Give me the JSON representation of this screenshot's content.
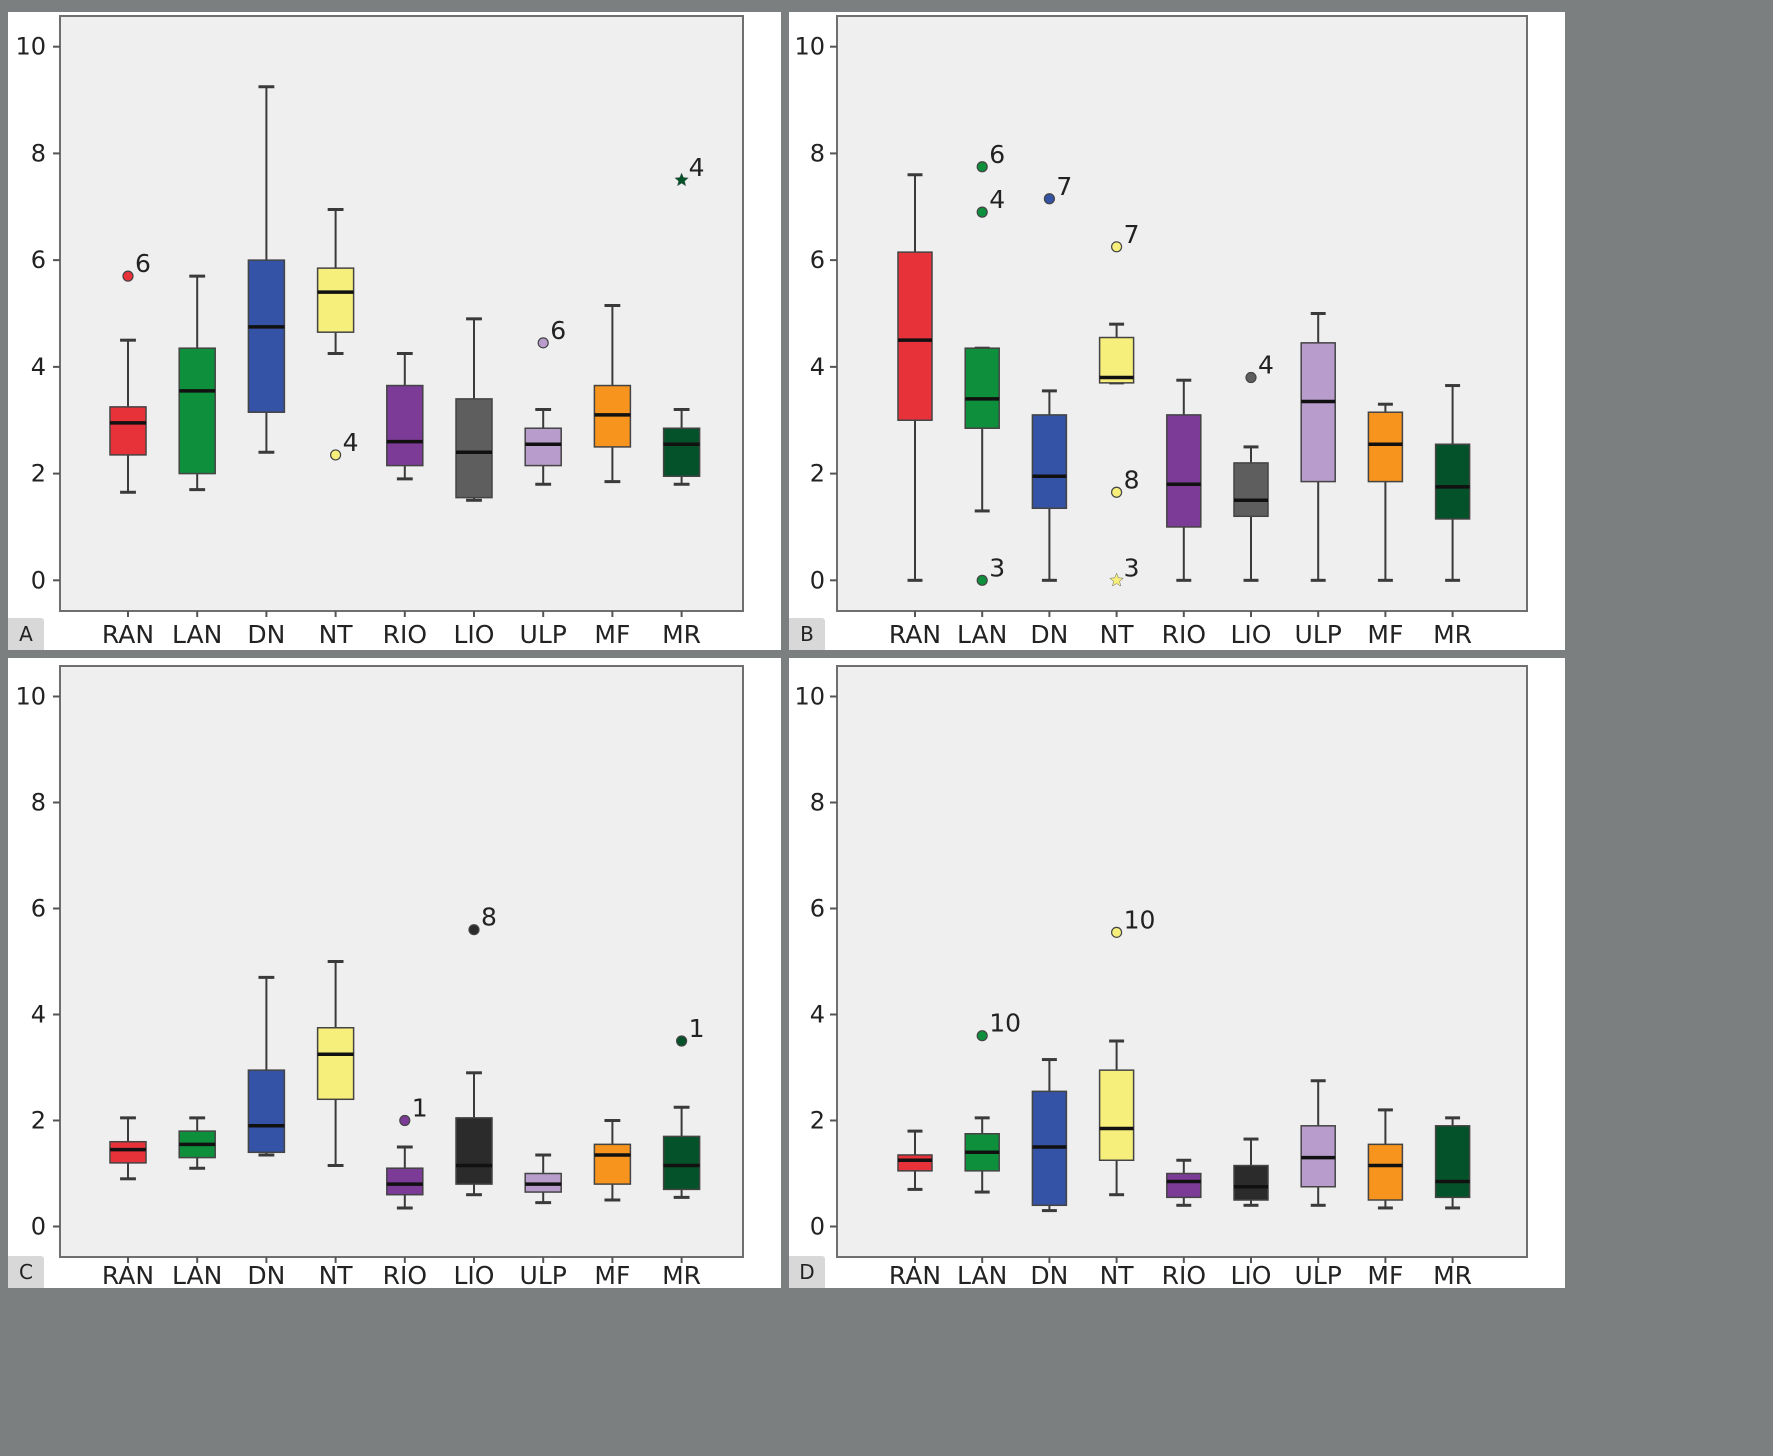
{
  "chart_data": [
    {
      "panel": "A",
      "type": "box",
      "categories": [
        "RAN",
        "LAN",
        "DN",
        "NT",
        "RIO",
        "LIO",
        "ULP",
        "MF",
        "MR"
      ],
      "colors": [
        "#e8323a",
        "#0e8f3c",
        "#3453a6",
        "#f7ef7c",
        "#7d3b98",
        "#5e5e5e",
        "#b79ccc",
        "#f7941d",
        "#045229"
      ],
      "ylim": [
        -0.5,
        10.5
      ],
      "yticks": [
        0,
        2,
        4,
        6,
        8,
        10
      ],
      "boxes": [
        {
          "min": 1.65,
          "q1": 2.35,
          "median": 2.95,
          "q3": 3.25,
          "max": 4.5
        },
        {
          "min": 1.7,
          "q1": 2.0,
          "median": 3.55,
          "q3": 4.35,
          "max": 5.7
        },
        {
          "min": 2.4,
          "q1": 3.15,
          "median": 4.75,
          "q3": 6.0,
          "max": 9.25
        },
        {
          "min": 4.25,
          "q1": 4.65,
          "median": 5.4,
          "q3": 5.85,
          "max": 6.95
        },
        {
          "min": 1.9,
          "q1": 2.15,
          "median": 2.6,
          "q3": 3.65,
          "max": 4.25
        },
        {
          "min": 1.5,
          "q1": 1.55,
          "median": 2.4,
          "q3": 3.4,
          "max": 4.9
        },
        {
          "min": 1.8,
          "q1": 2.15,
          "median": 2.55,
          "q3": 2.85,
          "max": 3.2
        },
        {
          "min": 1.85,
          "q1": 2.5,
          "median": 3.1,
          "q3": 3.65,
          "max": 5.15
        },
        {
          "min": 1.8,
          "q1": 1.95,
          "median": 2.55,
          "q3": 2.85,
          "max": 3.2
        }
      ],
      "outliers": [
        {
          "cat": 0,
          "value": 5.7,
          "label": "6",
          "marker": "circle"
        },
        {
          "cat": 3,
          "value": 2.35,
          "label": "4",
          "marker": "circle"
        },
        {
          "cat": 6,
          "value": 4.45,
          "label": "6",
          "marker": "circle"
        },
        {
          "cat": 8,
          "value": 7.5,
          "label": "4",
          "marker": "star"
        }
      ]
    },
    {
      "panel": "B",
      "type": "box",
      "categories": [
        "RAN",
        "LAN",
        "DN",
        "NT",
        "RIO",
        "LIO",
        "ULP",
        "MF",
        "MR"
      ],
      "colors": [
        "#e8323a",
        "#0e8f3c",
        "#3453a6",
        "#f7ef7c",
        "#7d3b98",
        "#5e5e5e",
        "#b79ccc",
        "#f7941d",
        "#045229"
      ],
      "ylim": [
        -0.5,
        10.5
      ],
      "yticks": [
        0,
        2,
        4,
        6,
        8,
        10
      ],
      "boxes": [
        {
          "min": 0.0,
          "q1": 3.0,
          "median": 4.5,
          "q3": 6.15,
          "max": 7.6
        },
        {
          "min": 1.3,
          "q1": 2.85,
          "median": 3.4,
          "q3": 4.35,
          "max": 4.35
        },
        {
          "min": 0.0,
          "q1": 1.35,
          "median": 1.95,
          "q3": 3.1,
          "max": 3.55
        },
        {
          "min": 3.7,
          "q1": 3.7,
          "median": 3.8,
          "q3": 4.55,
          "max": 4.8
        },
        {
          "min": 0.0,
          "q1": 1.0,
          "median": 1.8,
          "q3": 3.1,
          "max": 3.75
        },
        {
          "min": 0.0,
          "q1": 1.2,
          "median": 1.5,
          "q3": 2.2,
          "max": 2.5
        },
        {
          "min": 0.0,
          "q1": 1.85,
          "median": 3.35,
          "q3": 4.45,
          "max": 5.0
        },
        {
          "min": 0.0,
          "q1": 1.85,
          "median": 2.55,
          "q3": 3.15,
          "max": 3.3
        },
        {
          "min": 0.0,
          "q1": 1.15,
          "median": 1.75,
          "q3": 2.55,
          "max": 3.65
        }
      ],
      "outliers": [
        {
          "cat": 1,
          "value": 7.75,
          "label": "6",
          "marker": "circle"
        },
        {
          "cat": 1,
          "value": 6.9,
          "label": "4",
          "marker": "circle"
        },
        {
          "cat": 1,
          "value": 0.0,
          "label": "3",
          "marker": "circle"
        },
        {
          "cat": 2,
          "value": 7.15,
          "label": "7",
          "marker": "circle"
        },
        {
          "cat": 3,
          "value": 6.25,
          "label": "7",
          "marker": "circle"
        },
        {
          "cat": 3,
          "value": 1.65,
          "label": "8",
          "marker": "circle"
        },
        {
          "cat": 3,
          "value": 0.0,
          "label": "3",
          "marker": "star"
        },
        {
          "cat": 5,
          "value": 3.8,
          "label": "4",
          "marker": "circle"
        }
      ]
    },
    {
      "panel": "C",
      "type": "box",
      "categories": [
        "RAN",
        "LAN",
        "DN",
        "NT",
        "RIO",
        "LIO",
        "ULP",
        "MF",
        "MR"
      ],
      "colors": [
        "#e8323a",
        "#0e8f3c",
        "#3453a6",
        "#f7ef7c",
        "#7d3b98",
        "#2b2b2b",
        "#b79ccc",
        "#f7941d",
        "#045229"
      ],
      "ylim": [
        -0.5,
        10.5
      ],
      "yticks": [
        0,
        2,
        4,
        6,
        8,
        10
      ],
      "boxes": [
        {
          "min": 0.9,
          "q1": 1.2,
          "median": 1.45,
          "q3": 1.6,
          "max": 2.05
        },
        {
          "min": 1.1,
          "q1": 1.3,
          "median": 1.55,
          "q3": 1.8,
          "max": 2.05
        },
        {
          "min": 1.35,
          "q1": 1.4,
          "median": 1.9,
          "q3": 2.95,
          "max": 4.7
        },
        {
          "min": 1.15,
          "q1": 2.4,
          "median": 3.25,
          "q3": 3.75,
          "max": 5.0
        },
        {
          "min": 0.35,
          "q1": 0.6,
          "median": 0.8,
          "q3": 1.1,
          "max": 1.5
        },
        {
          "min": 0.6,
          "q1": 0.8,
          "median": 1.15,
          "q3": 2.05,
          "max": 2.9
        },
        {
          "min": 0.45,
          "q1": 0.65,
          "median": 0.8,
          "q3": 1.0,
          "max": 1.35
        },
        {
          "min": 0.5,
          "q1": 0.8,
          "median": 1.35,
          "q3": 1.55,
          "max": 2.0
        },
        {
          "min": 0.55,
          "q1": 0.7,
          "median": 1.15,
          "q3": 1.7,
          "max": 2.25
        }
      ],
      "outliers": [
        {
          "cat": 4,
          "value": 2.0,
          "label": "1",
          "marker": "circle"
        },
        {
          "cat": 5,
          "value": 5.6,
          "label": "8",
          "marker": "circle"
        },
        {
          "cat": 8,
          "value": 3.5,
          "label": "1",
          "marker": "circle"
        }
      ]
    },
    {
      "panel": "D",
      "type": "box",
      "categories": [
        "RAN",
        "LAN",
        "DN",
        "NT",
        "RIO",
        "LIO",
        "ULP",
        "MF",
        "MR"
      ],
      "colors": [
        "#e8323a",
        "#0e8f3c",
        "#3453a6",
        "#f7ef7c",
        "#7d3b98",
        "#2b2b2b",
        "#b79ccc",
        "#f7941d",
        "#045229"
      ],
      "ylim": [
        -0.5,
        10.5
      ],
      "yticks": [
        0,
        2,
        4,
        6,
        8,
        10
      ],
      "boxes": [
        {
          "min": 0.7,
          "q1": 1.05,
          "median": 1.25,
          "q3": 1.35,
          "max": 1.8
        },
        {
          "min": 0.65,
          "q1": 1.05,
          "median": 1.4,
          "q3": 1.75,
          "max": 2.05
        },
        {
          "min": 0.3,
          "q1": 0.4,
          "median": 1.5,
          "q3": 2.55,
          "max": 3.15
        },
        {
          "min": 0.6,
          "q1": 1.25,
          "median": 1.85,
          "q3": 2.95,
          "max": 3.5
        },
        {
          "min": 0.4,
          "q1": 0.55,
          "median": 0.85,
          "q3": 1.0,
          "max": 1.25
        },
        {
          "min": 0.4,
          "q1": 0.5,
          "median": 0.75,
          "q3": 1.15,
          "max": 1.65
        },
        {
          "min": 0.4,
          "q1": 0.75,
          "median": 1.3,
          "q3": 1.9,
          "max": 2.75
        },
        {
          "min": 0.35,
          "q1": 0.5,
          "median": 1.15,
          "q3": 1.55,
          "max": 2.2
        },
        {
          "min": 0.35,
          "q1": 0.55,
          "median": 0.85,
          "q3": 1.9,
          "max": 2.05
        }
      ],
      "outliers": [
        {
          "cat": 1,
          "value": 3.6,
          "label": "10",
          "marker": "circle"
        },
        {
          "cat": 3,
          "value": 5.55,
          "label": "10",
          "marker": "circle"
        }
      ]
    }
  ]
}
